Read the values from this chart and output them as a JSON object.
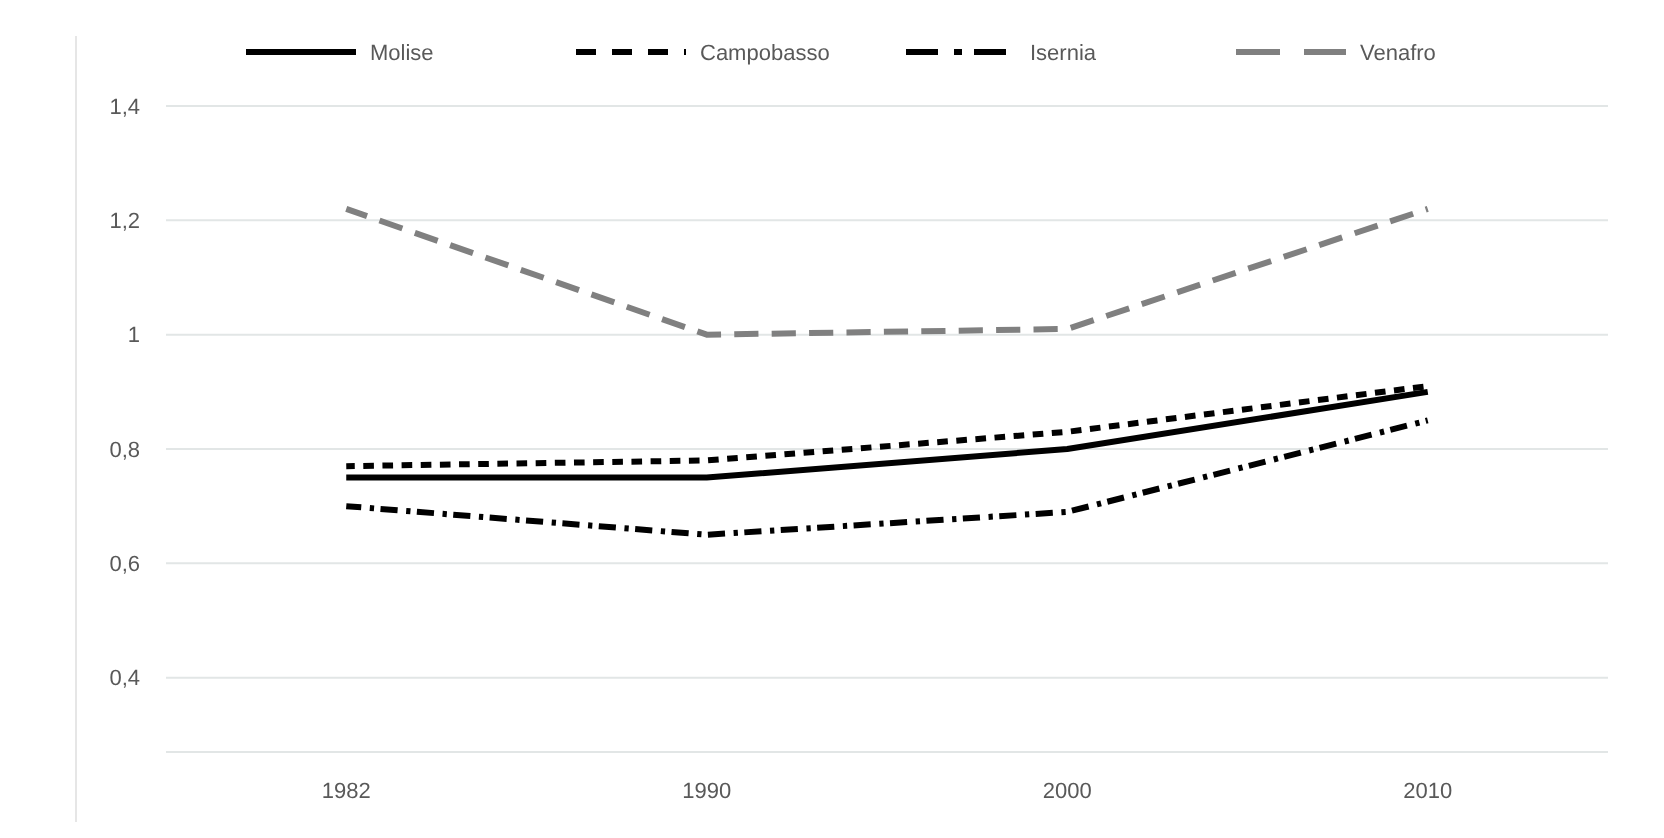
{
  "chart_data": {
    "type": "line",
    "categories": [
      "1982",
      "1990",
      "2000",
      "2010"
    ],
    "ylim": [
      0.27,
      1.4
    ],
    "yticks": [
      {
        "value": 0.4,
        "label": "0,4"
      },
      {
        "value": 0.6,
        "label": "0,6"
      },
      {
        "value": 0.8,
        "label": "0,8"
      },
      {
        "value": 1,
        "label": "1"
      },
      {
        "value": 1.2,
        "label": "1,2"
      },
      {
        "value": 1.4,
        "label": "1,4"
      }
    ],
    "grid": "y",
    "legend": "top",
    "series": [
      {
        "name": "Molise",
        "color": "#000000",
        "line_style": "solid",
        "values": [
          0.75,
          0.75,
          0.8,
          0.9
        ]
      },
      {
        "name": "Campobasso",
        "color": "#000000",
        "line_style": "dashed",
        "values": [
          0.77,
          0.78,
          0.83,
          0.91
        ]
      },
      {
        "name": "Isernia",
        "color": "#000000",
        "line_style": "dashdot",
        "values": [
          0.7,
          0.65,
          0.69,
          0.85
        ]
      },
      {
        "name": "Venafro",
        "color": "#808080",
        "line_style": "longdash",
        "values": [
          1.22,
          1.0,
          1.01,
          1.22
        ]
      }
    ]
  }
}
